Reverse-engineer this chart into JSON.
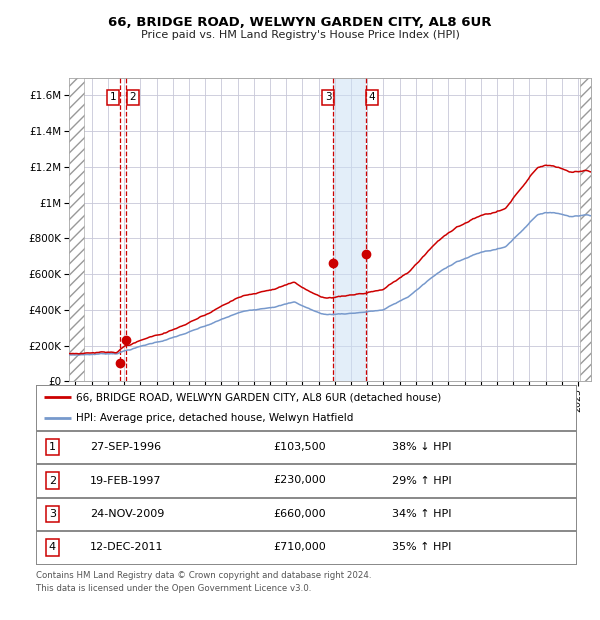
{
  "title": "66, BRIDGE ROAD, WELWYN GARDEN CITY, AL8 6UR",
  "subtitle": "Price paid vs. HM Land Registry's House Price Index (HPI)",
  "legend_line1": "66, BRIDGE ROAD, WELWYN GARDEN CITY, AL8 6UR (detached house)",
  "legend_line2": "HPI: Average price, detached house, Welwyn Hatfield",
  "footer1": "Contains HM Land Registry data © Crown copyright and database right 2024.",
  "footer2": "This data is licensed under the Open Government Licence v3.0.",
  "hpi_color": "#7799cc",
  "price_color": "#cc0000",
  "background_color": "#ffffff",
  "grid_color": "#c8c8d8",
  "transactions": [
    {
      "num": 1,
      "date": "27-SEP-1996",
      "price": 103500,
      "pct": "38%",
      "dir": "↓",
      "year_float": 1996.74
    },
    {
      "num": 2,
      "date": "19-FEB-1997",
      "price": 230000,
      "pct": "29%",
      "dir": "↑",
      "year_float": 1997.13
    },
    {
      "num": 3,
      "date": "24-NOV-2009",
      "price": 660000,
      "pct": "34%",
      "dir": "↑",
      "year_float": 2009.9
    },
    {
      "num": 4,
      "date": "12-DEC-2011",
      "price": 710000,
      "pct": "35%",
      "dir": "↑",
      "year_float": 2011.95
    }
  ],
  "table_dates": [
    "27-SEP-1996",
    "19-FEB-1997",
    "24-NOV-2009",
    "12-DEC-2011"
  ],
  "table_prices": [
    "£103,500",
    "£230,000",
    "£660,000",
    "£710,000"
  ],
  "table_pcts": [
    "38% ↓ HPI",
    "29% ↑ HPI",
    "34% ↑ HPI",
    "35% ↑ HPI"
  ],
  "xmin": 1993.6,
  "xmax": 2025.8,
  "ymin": 0,
  "ymax": 1700000,
  "yticks": [
    0,
    200000,
    400000,
    600000,
    800000,
    1000000,
    1200000,
    1400000,
    1600000
  ]
}
